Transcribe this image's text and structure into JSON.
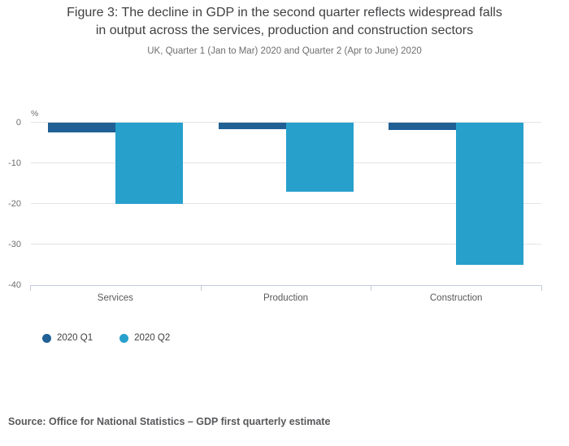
{
  "header": {
    "title_line1": "Figure 3: The decline in GDP in the second quarter reflects widespread falls",
    "title_line2": "in output across the services, production and construction sectors",
    "subtitle": "UK, Quarter 1 (Jan to Mar) 2020 and Quarter 2 (Apr to June) 2020"
  },
  "chart_data": {
    "type": "bar",
    "title": "Figure 3: The decline in GDP in the second quarter reflects widespread falls in output across the services, production and construction sectors",
    "subtitle": "UK, Quarter 1 (Jan to Mar) 2020 and Quarter 2 (Apr to June) 2020",
    "unit_label": "%",
    "categories": [
      "Services",
      "Production",
      "Construction"
    ],
    "series": [
      {
        "name": "2020 Q1",
        "color": "#206095",
        "values": [
          -2.3,
          -1.5,
          -1.7
        ]
      },
      {
        "name": "2020 Q2",
        "color": "#27a0cc",
        "values": [
          -19.9,
          -16.9,
          -35.0
        ]
      }
    ],
    "y_ticks": [
      0,
      -10,
      -20,
      -30,
      -40
    ],
    "ylim": [
      -40,
      0
    ],
    "grid": true,
    "orientation": "vertical",
    "legend_position": "below-left"
  },
  "source": "Source: Office for National Statistics – GDP first quarterly estimate"
}
